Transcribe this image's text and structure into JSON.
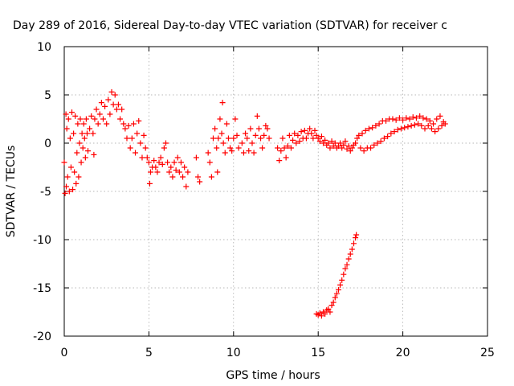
{
  "chart_data": {
    "type": "scatter",
    "title": "Day 289 of 2016, Sidereal Day-to-day VTEC variation (SDTVAR) for receiver c",
    "xlabel": "GPS time / hours",
    "ylabel": "SDTVAR / TECUs",
    "xlim": [
      0,
      25
    ],
    "ylim": [
      -20,
      10
    ],
    "xticks": [
      "0",
      "5",
      "10",
      "15",
      "20",
      "25"
    ],
    "yticks": [
      "10",
      "5",
      "0",
      "-5",
      "-10",
      "-15",
      "-20"
    ],
    "grid": true,
    "marker": "plus",
    "marker_color": "#ff0000",
    "series": [
      {
        "points": [
          [
            0.0,
            -2.0
          ],
          [
            0.05,
            -5.2
          ],
          [
            0.1,
            3.0
          ],
          [
            0.12,
            -4.5
          ],
          [
            0.15,
            1.5
          ],
          [
            0.2,
            -3.5
          ],
          [
            0.25,
            2.5
          ],
          [
            0.3,
            -5.0
          ],
          [
            0.35,
            0.5
          ],
          [
            0.4,
            -2.5
          ],
          [
            0.45,
            3.2
          ],
          [
            0.5,
            -4.8
          ],
          [
            0.55,
            1.0
          ],
          [
            0.6,
            -3.0
          ],
          [
            0.65,
            2.8
          ],
          [
            0.7,
            -4.2
          ],
          [
            0.75,
            -1.0
          ],
          [
            0.8,
            2.0
          ],
          [
            0.85,
            -3.5
          ],
          [
            0.9,
            0.0
          ],
          [
            0.95,
            2.5
          ],
          [
            1.0,
            -2.0
          ],
          [
            1.05,
            1.0
          ],
          [
            1.1,
            -0.5
          ],
          [
            1.15,
            2.0
          ],
          [
            1.2,
            0.5
          ],
          [
            1.25,
            -1.5
          ],
          [
            1.3,
            2.5
          ],
          [
            1.35,
            1.0
          ],
          [
            1.4,
            -0.8
          ],
          [
            1.5,
            1.5
          ],
          [
            1.6,
            2.8
          ],
          [
            1.7,
            1.0
          ],
          [
            1.75,
            -1.2
          ],
          [
            1.8,
            2.5
          ],
          [
            1.9,
            3.5
          ],
          [
            2.0,
            2.0
          ],
          [
            2.1,
            3.0
          ],
          [
            2.2,
            4.2
          ],
          [
            2.3,
            2.5
          ],
          [
            2.4,
            3.8
          ],
          [
            2.5,
            2.0
          ],
          [
            2.6,
            4.5
          ],
          [
            2.7,
            3.0
          ],
          [
            2.8,
            5.3
          ],
          [
            2.9,
            4.0
          ],
          [
            3.0,
            5.0
          ],
          [
            3.1,
            3.5
          ],
          [
            3.2,
            4.0
          ],
          [
            3.3,
            2.5
          ],
          [
            3.4,
            3.5
          ],
          [
            3.5,
            2.0
          ],
          [
            3.6,
            1.5
          ],
          [
            3.7,
            0.5
          ],
          [
            3.8,
            1.8
          ],
          [
            3.9,
            -0.5
          ],
          [
            4.0,
            0.5
          ],
          [
            4.1,
            2.0
          ],
          [
            4.2,
            -1.0
          ],
          [
            4.3,
            1.0
          ],
          [
            4.4,
            2.3
          ],
          [
            4.5,
            0.0
          ],
          [
            4.6,
            -1.5
          ],
          [
            4.7,
            0.8
          ],
          [
            4.8,
            -0.5
          ],
          [
            4.9,
            -1.5
          ],
          [
            5.0,
            -2.0
          ],
          [
            5.05,
            -4.2
          ],
          [
            5.1,
            -3.0
          ],
          [
            5.2,
            -2.5
          ],
          [
            5.3,
            -1.8
          ],
          [
            5.4,
            -2.5
          ],
          [
            5.5,
            -3.0
          ],
          [
            5.6,
            -2.0
          ],
          [
            5.7,
            -1.5
          ],
          [
            5.8,
            -2.2
          ],
          [
            5.9,
            -0.5
          ],
          [
            6.0,
            0.0
          ],
          [
            6.1,
            -2.0
          ],
          [
            6.2,
            -3.0
          ],
          [
            6.3,
            -2.5
          ],
          [
            6.4,
            -3.5
          ],
          [
            6.5,
            -2.0
          ],
          [
            6.6,
            -2.8
          ],
          [
            6.7,
            -1.5
          ],
          [
            6.8,
            -3.0
          ],
          [
            6.9,
            -2.0
          ],
          [
            7.0,
            -3.5
          ],
          [
            7.1,
            -2.5
          ],
          [
            7.2,
            -4.5
          ],
          [
            7.3,
            -3.0
          ],
          [
            7.8,
            -1.5
          ],
          [
            7.9,
            -3.5
          ],
          [
            8.0,
            -4.0
          ],
          [
            8.5,
            -1.0
          ],
          [
            8.6,
            -2.0
          ],
          [
            8.7,
            -3.5
          ],
          [
            8.8,
            0.5
          ],
          [
            8.9,
            1.5
          ],
          [
            9.0,
            -0.5
          ],
          [
            9.05,
            -3.0
          ],
          [
            9.1,
            0.5
          ],
          [
            9.2,
            2.5
          ],
          [
            9.3,
            1.0
          ],
          [
            9.35,
            4.2
          ],
          [
            9.4,
            0.0
          ],
          [
            9.5,
            -1.0
          ],
          [
            9.6,
            2.0
          ],
          [
            9.7,
            0.5
          ],
          [
            9.8,
            -0.5
          ],
          [
            9.9,
            -0.8
          ],
          [
            10.0,
            0.5
          ],
          [
            10.1,
            2.5
          ],
          [
            10.2,
            0.8
          ],
          [
            10.3,
            -0.5
          ],
          [
            10.5,
            0.0
          ],
          [
            10.6,
            -1.0
          ],
          [
            10.7,
            1.0
          ],
          [
            10.8,
            0.5
          ],
          [
            10.9,
            -0.8
          ],
          [
            11.0,
            1.5
          ],
          [
            11.1,
            0.0
          ],
          [
            11.2,
            -1.0
          ],
          [
            11.3,
            0.8
          ],
          [
            11.4,
            2.8
          ],
          [
            11.5,
            1.5
          ],
          [
            11.6,
            0.5
          ],
          [
            11.7,
            -0.5
          ],
          [
            11.8,
            0.8
          ],
          [
            11.9,
            1.8
          ],
          [
            12.0,
            1.5
          ],
          [
            12.1,
            0.5
          ],
          [
            12.6,
            -0.5
          ],
          [
            12.7,
            -1.8
          ],
          [
            12.8,
            -0.8
          ],
          [
            12.9,
            0.5
          ],
          [
            13.0,
            -0.5
          ],
          [
            13.1,
            -1.5
          ],
          [
            13.2,
            -0.3
          ],
          [
            13.3,
            0.8
          ],
          [
            13.4,
            -0.5
          ],
          [
            13.5,
            0.3
          ],
          [
            13.6,
            1.0
          ],
          [
            13.7,
            0.0
          ],
          [
            13.8,
            0.8
          ],
          [
            13.9,
            0.2
          ],
          [
            14.0,
            1.2
          ],
          [
            14.1,
            0.5
          ],
          [
            14.2,
            1.3
          ],
          [
            14.3,
            0.5
          ],
          [
            14.4,
            1.0
          ],
          [
            14.5,
            1.5
          ],
          [
            14.6,
            1.0
          ],
          [
            14.7,
            0.5
          ],
          [
            14.8,
            1.3
          ],
          [
            14.9,
            0.8
          ],
          [
            15.0,
            0.5
          ],
          [
            15.1,
            0.2
          ],
          [
            15.2,
            0.7
          ],
          [
            15.3,
            0.0
          ],
          [
            15.4,
            0.3
          ],
          [
            15.5,
            -0.2
          ],
          [
            15.6,
            0.0
          ],
          [
            15.7,
            -0.5
          ],
          [
            15.8,
            0.2
          ],
          [
            15.9,
            -0.3
          ],
          [
            16.0,
            0.0
          ],
          [
            16.1,
            -0.5
          ],
          [
            16.2,
            -0.3
          ],
          [
            16.3,
            0.0
          ],
          [
            16.4,
            -0.5
          ],
          [
            16.5,
            -0.2
          ],
          [
            16.6,
            0.2
          ],
          [
            16.7,
            -0.6
          ],
          [
            16.8,
            -0.3
          ],
          [
            16.9,
            -0.8
          ],
          [
            17.0,
            -0.5
          ],
          [
            17.1,
            -0.2
          ],
          [
            17.2,
            0.0
          ],
          [
            17.3,
            0.5
          ],
          [
            17.4,
            0.8
          ],
          [
            17.5,
            -0.5
          ],
          [
            17.6,
            1.0
          ],
          [
            17.7,
            -0.8
          ],
          [
            17.8,
            1.3
          ],
          [
            17.9,
            -0.5
          ],
          [
            18.0,
            1.5
          ],
          [
            18.1,
            -0.5
          ],
          [
            18.2,
            1.6
          ],
          [
            18.3,
            -0.2
          ],
          [
            18.4,
            1.8
          ],
          [
            18.5,
            0.0
          ],
          [
            18.6,
            2.0
          ],
          [
            18.7,
            0.2
          ],
          [
            18.8,
            2.3
          ],
          [
            18.9,
            0.5
          ],
          [
            19.0,
            2.3
          ],
          [
            19.1,
            0.7
          ],
          [
            19.2,
            2.5
          ],
          [
            19.3,
            1.0
          ],
          [
            19.4,
            2.5
          ],
          [
            19.5,
            1.2
          ],
          [
            19.6,
            2.4
          ],
          [
            19.7,
            1.4
          ],
          [
            19.8,
            2.6
          ],
          [
            19.9,
            1.5
          ],
          [
            20.0,
            2.4
          ],
          [
            20.1,
            1.6
          ],
          [
            20.2,
            2.6
          ],
          [
            20.3,
            1.7
          ],
          [
            20.4,
            2.5
          ],
          [
            20.5,
            1.8
          ],
          [
            20.6,
            2.7
          ],
          [
            20.7,
            1.9
          ],
          [
            20.8,
            2.6
          ],
          [
            20.9,
            2.0
          ],
          [
            21.0,
            2.8
          ],
          [
            21.1,
            1.8
          ],
          [
            21.2,
            2.6
          ],
          [
            21.3,
            1.5
          ],
          [
            21.4,
            2.5
          ],
          [
            21.5,
            1.8
          ],
          [
            21.6,
            2.3
          ],
          [
            21.7,
            1.5
          ],
          [
            21.8,
            2.0
          ],
          [
            21.9,
            1.2
          ],
          [
            22.0,
            2.5
          ],
          [
            22.1,
            1.5
          ],
          [
            22.2,
            2.8
          ],
          [
            22.3,
            1.8
          ],
          [
            22.4,
            2.2
          ],
          [
            22.5,
            2.0
          ],
          [
            14.9,
            -17.7
          ],
          [
            15.0,
            -17.8
          ],
          [
            15.1,
            -17.6
          ],
          [
            15.2,
            -17.9
          ],
          [
            15.3,
            -17.5
          ],
          [
            15.4,
            -17.7
          ],
          [
            15.5,
            -17.3
          ],
          [
            15.6,
            -17.2
          ],
          [
            15.7,
            -17.5
          ],
          [
            15.8,
            -16.8
          ],
          [
            15.9,
            -16.5
          ],
          [
            16.0,
            -16.0
          ],
          [
            16.1,
            -15.6
          ],
          [
            16.2,
            -15.2
          ],
          [
            16.3,
            -14.7
          ],
          [
            16.4,
            -14.2
          ],
          [
            16.5,
            -13.6
          ],
          [
            16.6,
            -13.0
          ],
          [
            16.7,
            -12.6
          ],
          [
            16.8,
            -12.0
          ],
          [
            16.9,
            -11.5
          ],
          [
            17.0,
            -11.0
          ],
          [
            17.1,
            -10.4
          ],
          [
            17.2,
            -9.8
          ],
          [
            17.25,
            -9.5
          ]
        ]
      }
    ]
  }
}
